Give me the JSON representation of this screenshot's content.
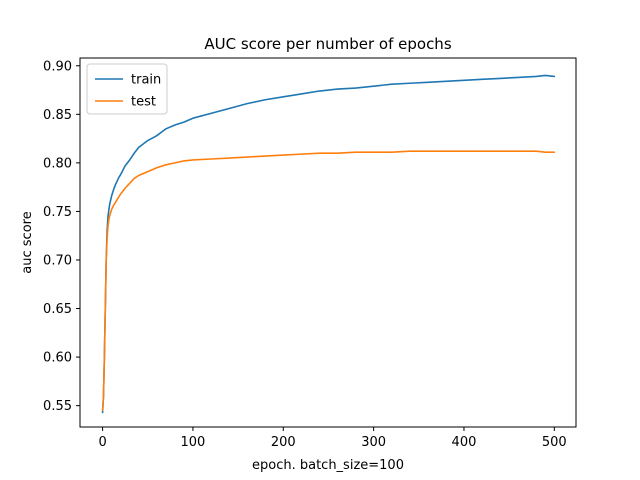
{
  "chart_data": {
    "type": "line",
    "title": "AUC score per number of epochs",
    "xlabel": "epoch. batch_size=100",
    "ylabel": "auc score",
    "xlim": [
      -25,
      524
    ],
    "ylim": [
      0.528,
      0.908
    ],
    "xticks": [
      0,
      100,
      200,
      300,
      400,
      500
    ],
    "yticks": [
      0.55,
      0.6,
      0.65,
      0.7,
      0.75,
      0.8,
      0.85,
      0.9
    ],
    "ytick_labels": [
      "0.55",
      "0.60",
      "0.65",
      "0.70",
      "0.75",
      "0.80",
      "0.85",
      "0.90"
    ],
    "grid": false,
    "legend_position": "top-left",
    "series": [
      {
        "name": "train",
        "color": "#1f77b4",
        "x": [
          0,
          1,
          2,
          3,
          4,
          5,
          6,
          7,
          8,
          9,
          10,
          12,
          14,
          16,
          18,
          20,
          25,
          30,
          35,
          40,
          50,
          60,
          70,
          80,
          90,
          100,
          120,
          140,
          160,
          180,
          200,
          220,
          240,
          260,
          280,
          300,
          320,
          340,
          360,
          380,
          400,
          420,
          440,
          460,
          480,
          490,
          500
        ],
        "y": [
          0.543,
          0.56,
          0.6,
          0.65,
          0.7,
          0.73,
          0.745,
          0.752,
          0.758,
          0.762,
          0.766,
          0.772,
          0.777,
          0.781,
          0.785,
          0.788,
          0.797,
          0.803,
          0.81,
          0.816,
          0.823,
          0.828,
          0.835,
          0.839,
          0.842,
          0.846,
          0.851,
          0.856,
          0.861,
          0.865,
          0.868,
          0.871,
          0.874,
          0.876,
          0.877,
          0.879,
          0.881,
          0.882,
          0.883,
          0.884,
          0.885,
          0.886,
          0.887,
          0.888,
          0.889,
          0.89,
          0.889
        ]
      },
      {
        "name": "test",
        "color": "#ff7f0e",
        "x": [
          0,
          1,
          2,
          3,
          4,
          5,
          6,
          7,
          8,
          9,
          10,
          12,
          14,
          16,
          18,
          20,
          25,
          30,
          35,
          40,
          50,
          60,
          70,
          80,
          90,
          100,
          120,
          140,
          160,
          180,
          200,
          220,
          240,
          260,
          280,
          300,
          320,
          340,
          360,
          380,
          400,
          420,
          440,
          460,
          480,
          490,
          500
        ],
        "y": [
          0.545,
          0.56,
          0.6,
          0.65,
          0.7,
          0.722,
          0.735,
          0.742,
          0.746,
          0.749,
          0.752,
          0.756,
          0.759,
          0.762,
          0.765,
          0.768,
          0.774,
          0.779,
          0.784,
          0.787,
          0.791,
          0.795,
          0.798,
          0.8,
          0.802,
          0.803,
          0.804,
          0.805,
          0.806,
          0.807,
          0.808,
          0.809,
          0.81,
          0.81,
          0.811,
          0.811,
          0.811,
          0.812,
          0.812,
          0.812,
          0.812,
          0.812,
          0.812,
          0.812,
          0.812,
          0.811,
          0.811
        ]
      }
    ]
  }
}
